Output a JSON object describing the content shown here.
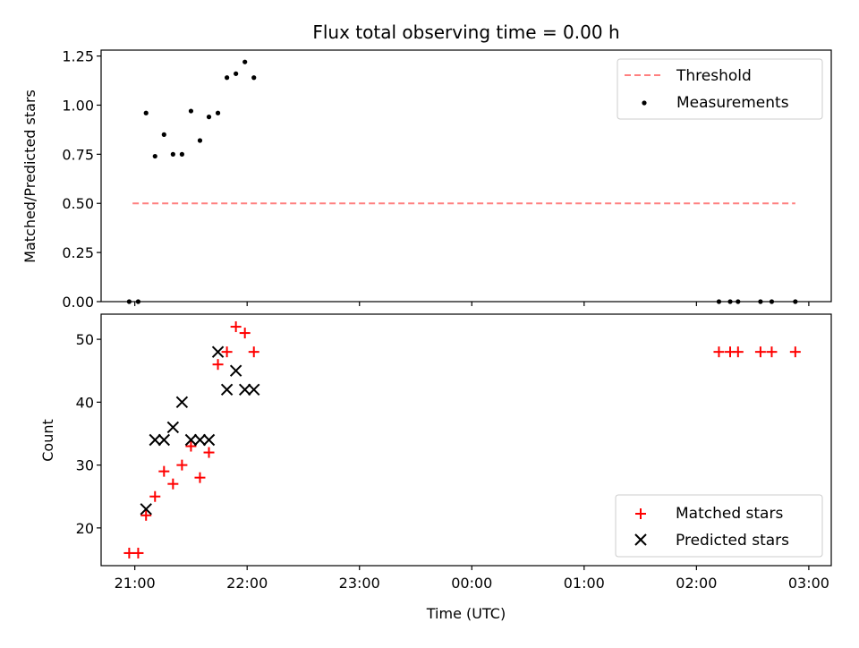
{
  "chart_data": {
    "type": "scatter",
    "title": "Flux total observing time = 0.00 h",
    "xlabel": "Time (UTC)",
    "x_ticks": [
      "21:00",
      "22:00",
      "23:00",
      "00:00",
      "01:00",
      "02:00",
      "03:00"
    ],
    "x_tick_hours": [
      21,
      22,
      23,
      24,
      25,
      26,
      27
    ],
    "xlim": [
      20.7,
      27.2
    ],
    "panels": [
      {
        "ylabel": "Matched/Predicted stars",
        "ylim": [
          0,
          1.28
        ],
        "y_ticks": [
          "0.00",
          "0.25",
          "0.50",
          "0.75",
          "1.00",
          "1.25"
        ],
        "y_tick_values": [
          0,
          0.25,
          0.5,
          0.75,
          1.0,
          1.25
        ],
        "legend_position": "top-right",
        "threshold": {
          "name": "Threshold",
          "value": 0.5,
          "x_range": [
            20.98,
            26.88
          ],
          "color": "#ff7f7f"
        },
        "series": [
          {
            "name": "Measurements",
            "marker": "dot",
            "color": "#000000",
            "x": [
              20.95,
              21.03,
              21.1,
              21.18,
              21.26,
              21.34,
              21.42,
              21.5,
              21.58,
              21.66,
              21.74,
              21.82,
              21.9,
              21.98,
              22.06,
              26.2,
              26.3,
              26.37,
              26.57,
              26.67,
              26.88
            ],
            "y": [
              0.0,
              0.0,
              0.96,
              0.74,
              0.85,
              0.75,
              0.75,
              0.97,
              0.82,
              0.94,
              0.96,
              1.14,
              1.16,
              1.22,
              1.14,
              0.0,
              0.0,
              0.0,
              0.0,
              0.0,
              0.0
            ]
          }
        ]
      },
      {
        "ylabel": "Count",
        "ylim": [
          14,
          54
        ],
        "y_ticks": [
          "20",
          "30",
          "40",
          "50"
        ],
        "y_tick_values": [
          20,
          30,
          40,
          50
        ],
        "legend_position": "bottom-right",
        "series": [
          {
            "name": "Matched stars",
            "marker": "plus",
            "color": "#ff0000",
            "x": [
              20.95,
              21.03,
              21.1,
              21.18,
              21.26,
              21.34,
              21.42,
              21.5,
              21.58,
              21.66,
              21.74,
              21.82,
              21.9,
              21.98,
              22.06,
              26.2,
              26.3,
              26.37,
              26.57,
              26.67,
              26.88
            ],
            "y": [
              16,
              16,
              22,
              25,
              29,
              27,
              30,
              33,
              28,
              32,
              46,
              48,
              52,
              51,
              48,
              48,
              48,
              48,
              48,
              48,
              48
            ]
          },
          {
            "name": "Predicted stars",
            "marker": "x",
            "color": "#000000",
            "x": [
              21.1,
              21.18,
              21.26,
              21.34,
              21.42,
              21.5,
              21.58,
              21.66,
              21.74,
              21.82,
              21.9,
              21.98,
              22.06
            ],
            "y": [
              23,
              34,
              34,
              36,
              40,
              34,
              34,
              34,
              48,
              42,
              45,
              42,
              42
            ]
          }
        ]
      }
    ]
  }
}
